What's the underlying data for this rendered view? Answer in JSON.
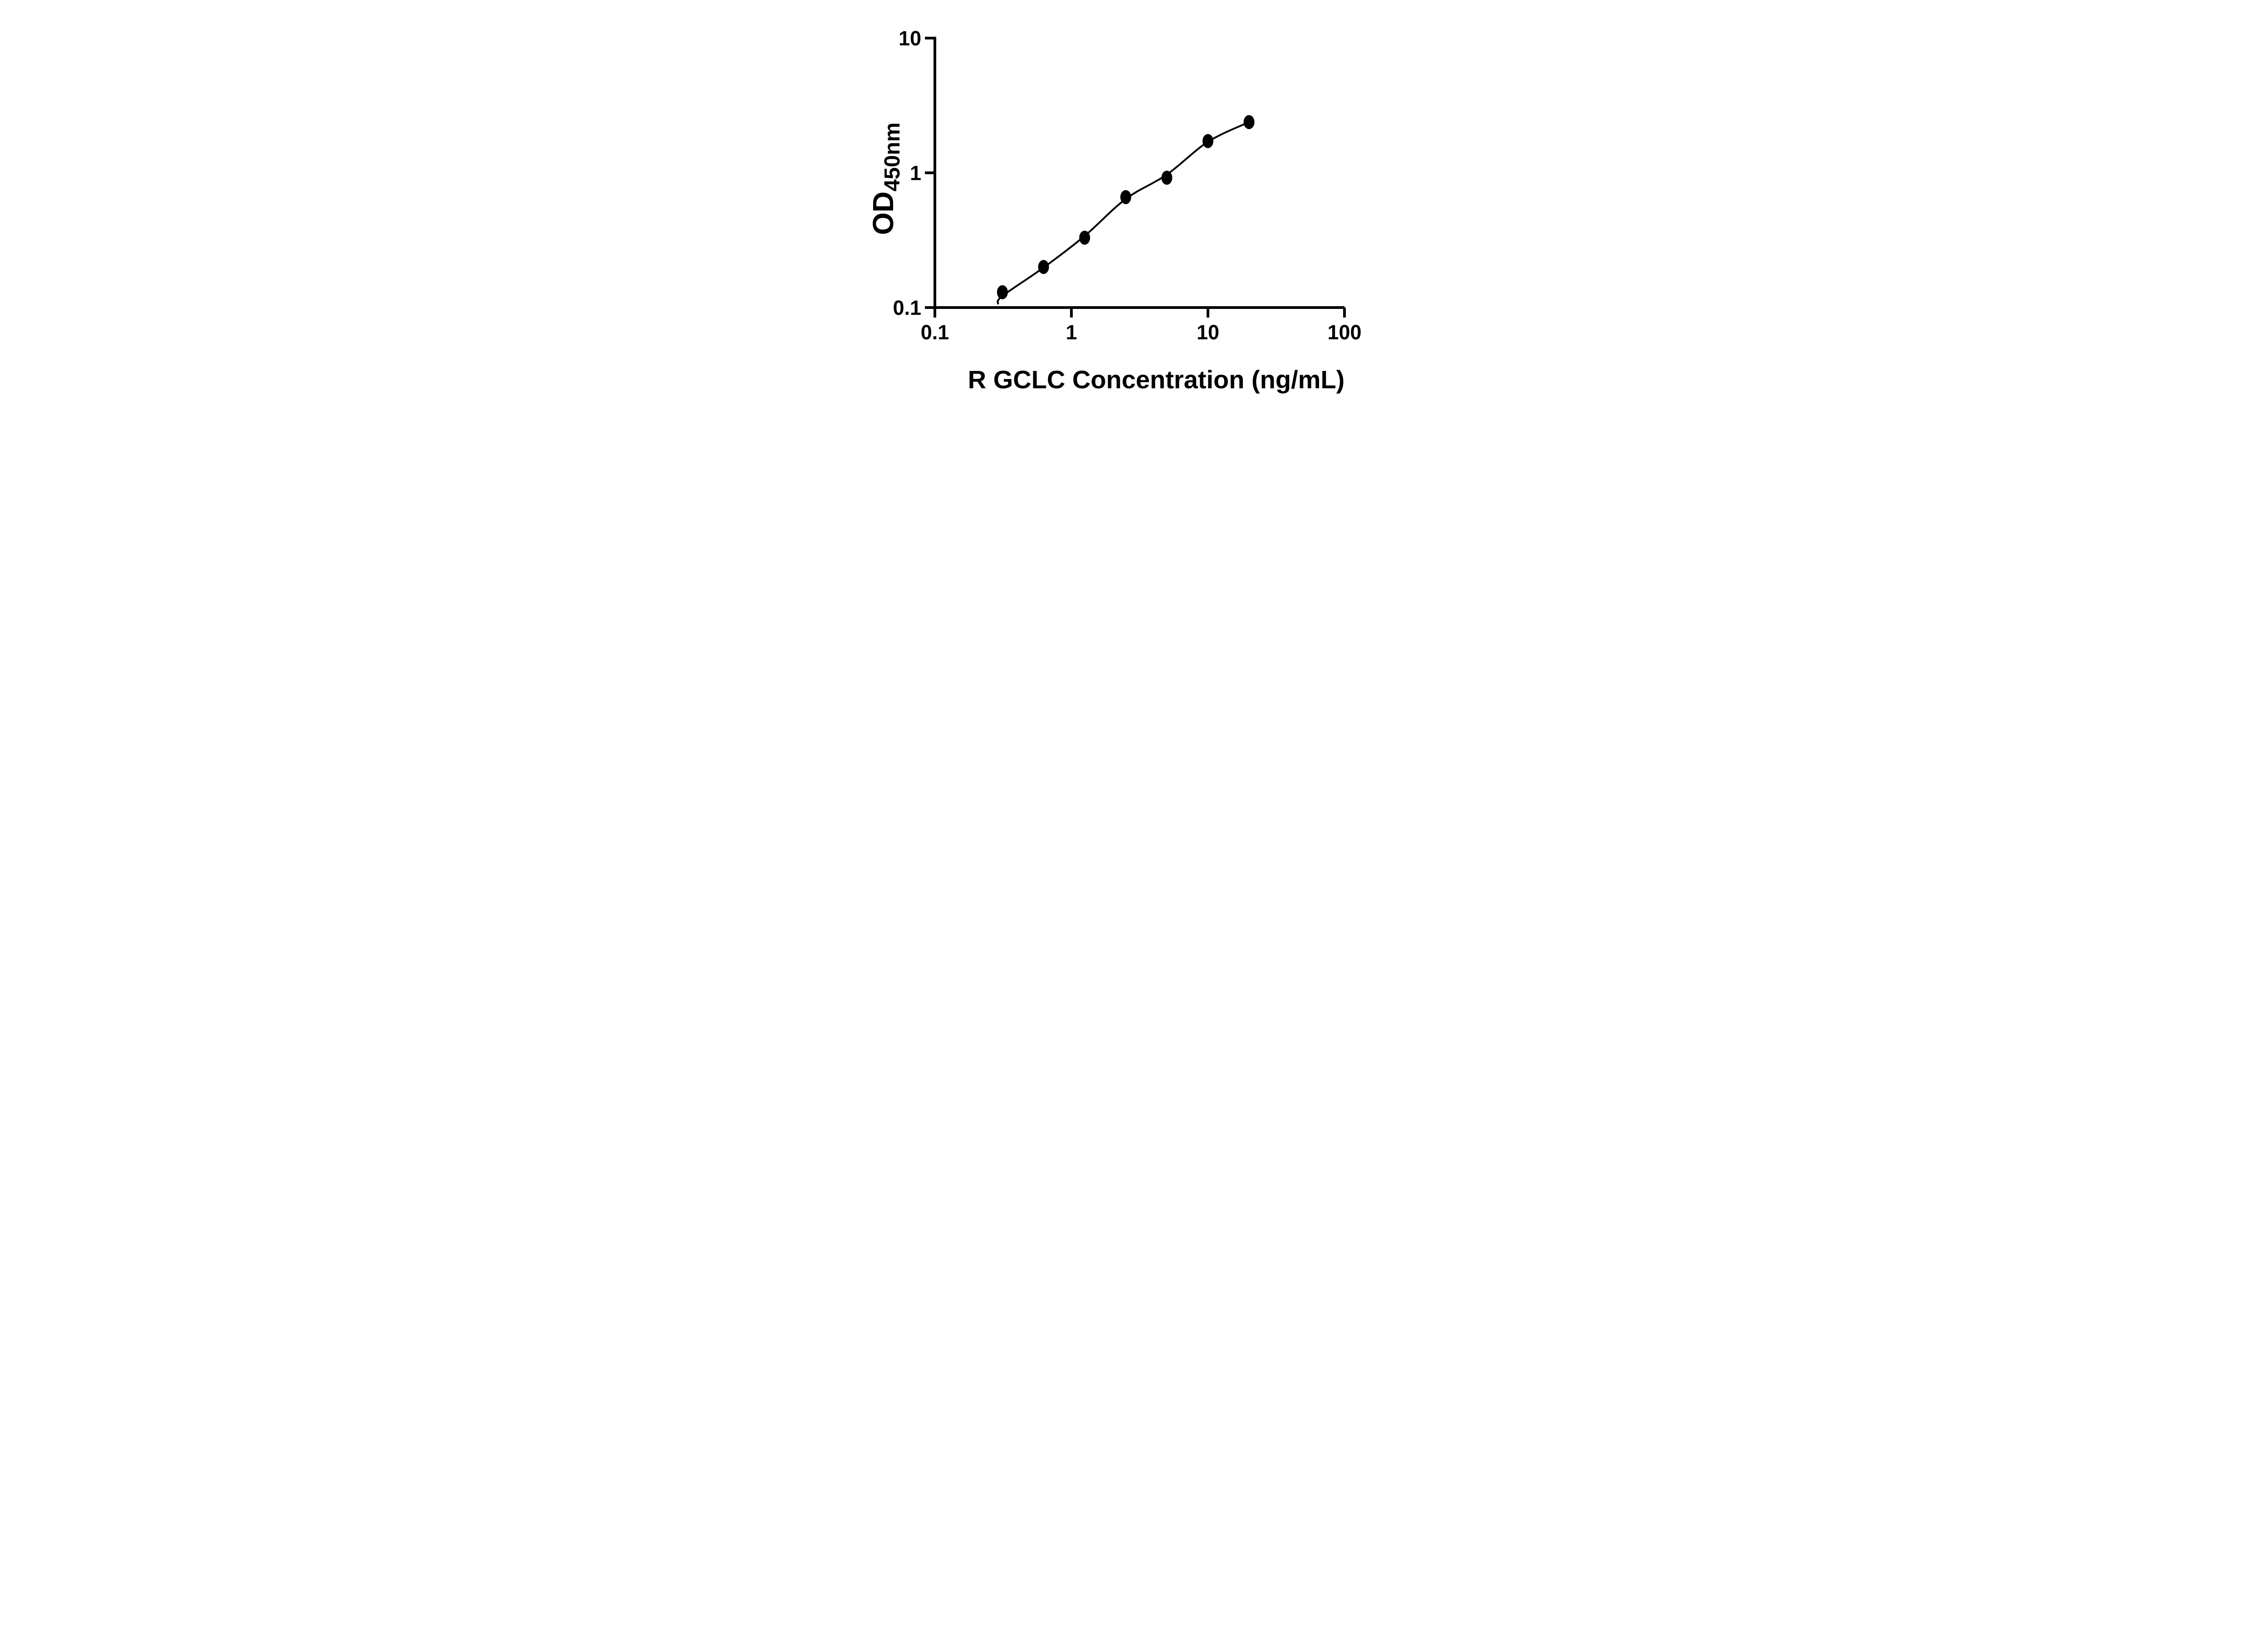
{
  "figure": {
    "background_color": "#ffffff",
    "ink_color": "#000000"
  },
  "chart_data": {
    "type": "scatter",
    "title": "",
    "xlabel": "R GCLC Concentration (ng/mL)",
    "ylabel_main": "OD",
    "ylabel_sub": "450nm",
    "legend": "none",
    "grid": "off",
    "x_axis": {
      "scale": "log",
      "min": 0.1,
      "max": 100,
      "ticks": [
        0.1,
        1,
        10,
        100
      ],
      "tick_labels": [
        "0.1",
        "1",
        "10",
        "100"
      ]
    },
    "y_axis": {
      "scale": "log",
      "min": 0.1,
      "max": 10,
      "ticks": [
        0.1,
        1,
        10
      ],
      "tick_labels": [
        "0.1",
        "1",
        "10"
      ]
    },
    "series": [
      {
        "name": "standard-curve",
        "marker": "filled-ellipse",
        "marker_color": "#000000",
        "line_color": "#000000",
        "points": [
          {
            "x": 0.3125,
            "y": 0.13
          },
          {
            "x": 0.625,
            "y": 0.2
          },
          {
            "x": 1.25,
            "y": 0.33
          },
          {
            "x": 2.5,
            "y": 0.66
          },
          {
            "x": 5,
            "y": 0.92
          },
          {
            "x": 10,
            "y": 1.72
          },
          {
            "x": 20,
            "y": 2.38
          }
        ],
        "fit_curve_points": [
          [
            0.29,
            0.107
          ],
          [
            0.3125,
            0.122
          ],
          [
            0.625,
            0.198
          ],
          [
            1.25,
            0.34
          ],
          [
            2.5,
            0.64
          ],
          [
            5,
            0.97
          ],
          [
            10,
            1.7
          ],
          [
            20,
            2.38
          ]
        ]
      }
    ]
  }
}
